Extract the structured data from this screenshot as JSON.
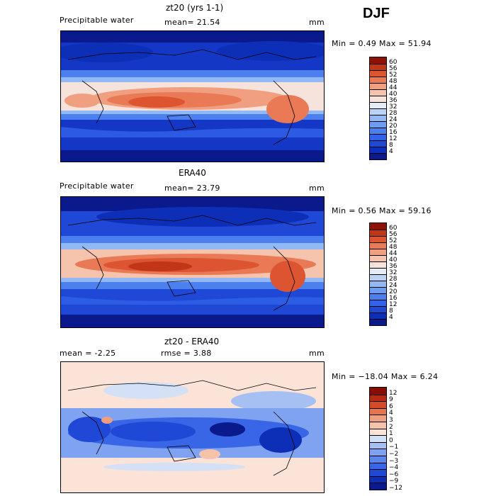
{
  "season": "DJF",
  "panels": [
    {
      "title": "zt20 (yrs 1-1)",
      "field": "Precipitable water",
      "mean_text": "mean=  21.54",
      "units": "mm",
      "minmax_text": "Min =    0.49 Max =  51.94",
      "kind": "abs",
      "colorbar_labels": [
        "60",
        "56",
        "52",
        "48",
        "44",
        "40",
        "36",
        "32",
        "28",
        "24",
        "20",
        "16",
        "12",
        "8",
        "4"
      ]
    },
    {
      "title": "ERA40",
      "field": "Precipitable water",
      "mean_text": "mean=  23.79",
      "units": "mm",
      "minmax_text": "Min =    0.56 Max =  59.16",
      "kind": "abs",
      "colorbar_labels": [
        "60",
        "56",
        "52",
        "48",
        "44",
        "40",
        "36",
        "32",
        "28",
        "24",
        "20",
        "16",
        "12",
        "8",
        "4"
      ]
    },
    {
      "title": "zt20 - ERA40",
      "field": "mean =   -2.25",
      "mean_text": "rmse =    3.88",
      "units": "mm",
      "minmax_text": "Min = −18.04 Max =    6.24",
      "kind": "diff",
      "colorbar_labels": [
        "12",
        "9",
        "6",
        "4",
        "3",
        "2",
        "1",
        "0",
        "−1",
        "−2",
        "−3",
        "−4",
        "−6",
        "−9",
        "−12"
      ]
    }
  ],
  "colors": {
    "abs_scale": [
      "#0a1a8c",
      "#0d2fb8",
      "#1f48d6",
      "#3263e8",
      "#4d80ef",
      "#6d9cf2",
      "#92b8f5",
      "#bcd2f5",
      "#e4ecf6",
      "#f6e4dc",
      "#f6c3ad",
      "#f0a081",
      "#ea7a56",
      "#dc5530",
      "#c23618",
      "#8e1206"
    ],
    "diff_scale": [
      "#0a1a8c",
      "#0d2fb8",
      "#1f48d6",
      "#3866e6",
      "#5a86ee",
      "#7fa2f1",
      "#a7c0f3",
      "#d3e0f5",
      "#fbe3d8",
      "#f5c2aa",
      "#ef9e80",
      "#e7744f",
      "#d64a27",
      "#b72b12",
      "#8a0d05"
    ]
  }
}
